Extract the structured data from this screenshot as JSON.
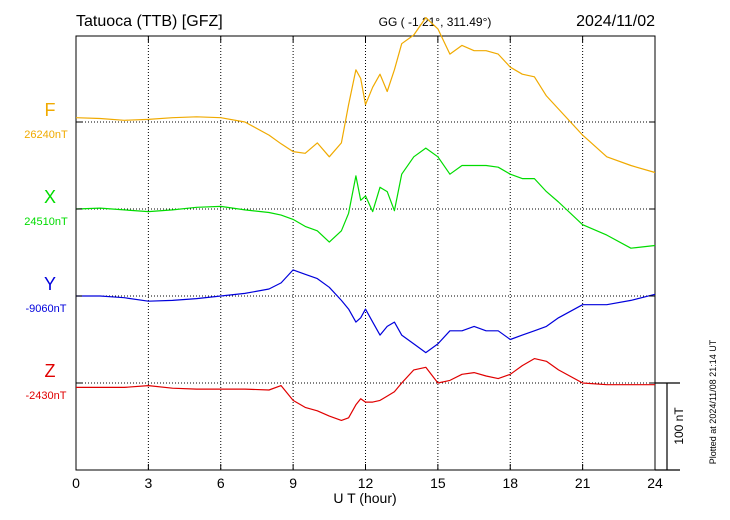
{
  "header": {
    "station": "Tatuoca (TTB)  [GFZ]",
    "coords": "GG ( -1.21°, 311.49°)",
    "date": "2024/11/02"
  },
  "footer": {
    "plotted": "Plotted at 2024/11/08 21:14 UT"
  },
  "chart_data": {
    "type": "line",
    "xlabel": "U T (hour)",
    "xlim": [
      0,
      24
    ],
    "xticks": [
      "0",
      "3",
      "6",
      "9",
      "12",
      "15",
      "18",
      "21",
      "24"
    ],
    "scale_bar": {
      "label": "100 nT",
      "value_nT": 100
    },
    "series": [
      {
        "name": "F",
        "baseline": "26240nT",
        "color": "#f0aa00",
        "x": [
          0,
          1,
          2,
          3,
          4,
          5,
          6,
          7,
          8,
          8.5,
          9,
          9.5,
          10,
          10.5,
          11,
          11.3,
          11.6,
          11.8,
          12,
          12.3,
          12.6,
          12.9,
          13.2,
          13.5,
          14,
          14.5,
          15,
          15.5,
          16,
          16.5,
          17,
          17.5,
          18,
          18.5,
          19,
          19.5,
          20,
          21,
          22,
          23,
          24
        ],
        "values": [
          5,
          4,
          2,
          3,
          5,
          6,
          5,
          0,
          -15,
          -25,
          -34,
          -36,
          -24,
          -40,
          -24,
          20,
          60,
          50,
          20,
          40,
          55,
          35,
          60,
          90,
          100,
          120,
          107,
          78,
          88,
          82,
          82,
          78,
          63,
          55,
          52,
          30,
          15,
          -15,
          -40,
          -50,
          -58
        ]
      },
      {
        "name": "X",
        "baseline": "24510nT",
        "color": "#00dc00",
        "x": [
          0,
          1,
          2,
          3,
          4,
          5,
          6,
          7,
          8,
          8.5,
          9,
          9.5,
          10,
          10.5,
          11,
          11.3,
          11.6,
          11.8,
          12,
          12.3,
          12.6,
          12.9,
          13.2,
          13.5,
          14,
          14.5,
          15,
          15.5,
          16,
          16.5,
          17,
          17.5,
          18,
          18.5,
          19,
          19.5,
          20,
          21,
          22,
          23,
          24
        ],
        "values": [
          0,
          1,
          -1,
          -3,
          -1,
          2,
          3,
          -1,
          -4,
          -7,
          -12,
          -20,
          -25,
          -38,
          -25,
          -5,
          38,
          10,
          15,
          -3,
          25,
          20,
          -2,
          40,
          60,
          70,
          60,
          40,
          50,
          50,
          50,
          48,
          40,
          35,
          35,
          20,
          8,
          -18,
          -30,
          -45,
          -42
        ]
      },
      {
        "name": "Y",
        "baseline": "-9060nT",
        "color": "#0000dc",
        "x": [
          0,
          1,
          2,
          3,
          4,
          5,
          6,
          7,
          8,
          8.5,
          9,
          9.5,
          10,
          10.5,
          11,
          11.3,
          11.6,
          11.8,
          12,
          12.3,
          12.6,
          12.9,
          13.2,
          13.5,
          14,
          14.5,
          15,
          15.5,
          16,
          16.5,
          17,
          17.5,
          18,
          18.5,
          19,
          19.5,
          20,
          21,
          22,
          23,
          24
        ],
        "values": [
          0,
          0,
          -2,
          -6,
          -5,
          -3,
          0,
          3,
          8,
          15,
          30,
          25,
          20,
          10,
          -5,
          -15,
          -30,
          -25,
          -15,
          -30,
          -45,
          -35,
          -30,
          -45,
          -55,
          -65,
          -55,
          -40,
          -40,
          -35,
          -40,
          -40,
          -50,
          -45,
          -40,
          -35,
          -25,
          -10,
          -10,
          -5,
          2
        ]
      },
      {
        "name": "Z",
        "baseline": "-2430nT",
        "color": "#e00000",
        "x": [
          0,
          1,
          2,
          3,
          4,
          5,
          6,
          7,
          8,
          8.5,
          9,
          9.5,
          10,
          10.5,
          11,
          11.3,
          11.6,
          11.8,
          12,
          12.3,
          12.6,
          12.9,
          13.2,
          13.5,
          14,
          14.5,
          15,
          15.5,
          16,
          16.5,
          17,
          17.5,
          18,
          18.5,
          19,
          19.5,
          20,
          21,
          22,
          23,
          24
        ],
        "values": [
          -5,
          -5,
          -5,
          -3,
          -6,
          -7,
          -7,
          -7,
          -8,
          -3,
          -20,
          -28,
          -32,
          -38,
          -43,
          -40,
          -25,
          -18,
          -22,
          -22,
          -20,
          -15,
          -10,
          0,
          15,
          18,
          0,
          3,
          10,
          12,
          8,
          5,
          10,
          20,
          28,
          25,
          15,
          0,
          -2,
          -2,
          -2
        ]
      }
    ]
  }
}
